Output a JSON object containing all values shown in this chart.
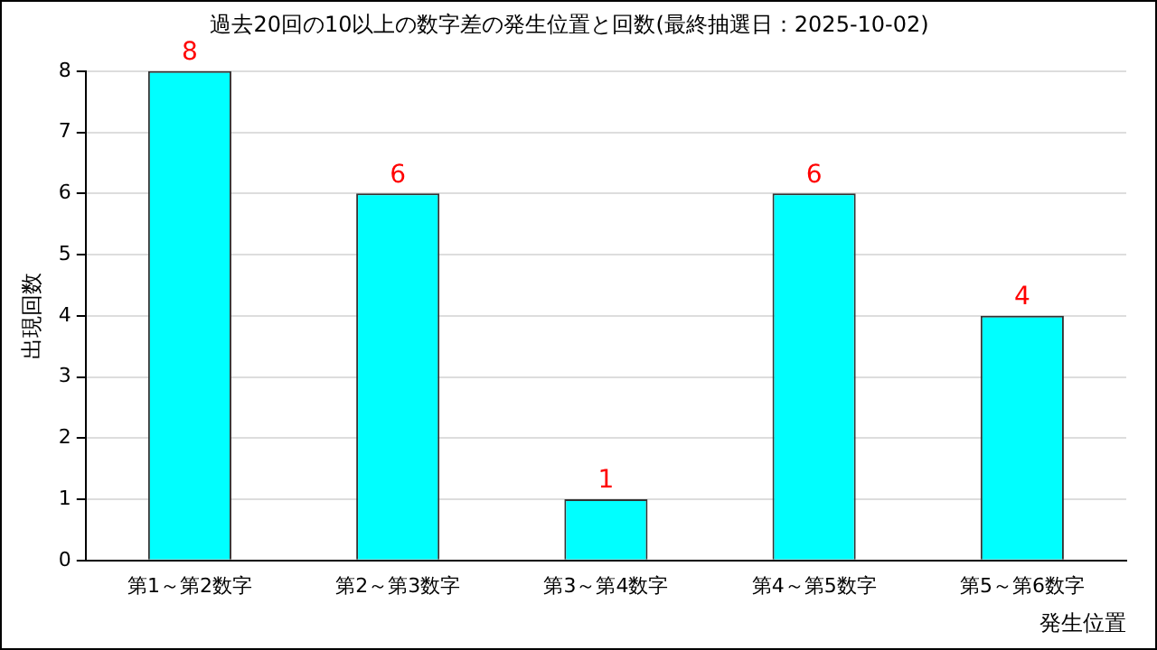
{
  "chart_data": {
    "type": "bar",
    "title": "過去20回の10以上の数字差の発生位置と回数(最終抽選日：2025-10-02)",
    "xlabel": "発生位置",
    "ylabel": "出現回数",
    "categories": [
      "第1～第2数字",
      "第2～第3数字",
      "第3～第4数字",
      "第4～第5数字",
      "第5～第6数字"
    ],
    "values": [
      8,
      6,
      1,
      6,
      4
    ],
    "color": "#00ffff",
    "ylim": [
      0,
      8
    ],
    "yticks": [
      0,
      1,
      2,
      3,
      4,
      5,
      6,
      7,
      8
    ],
    "grid": "y",
    "data_labels": true,
    "legend": false
  }
}
